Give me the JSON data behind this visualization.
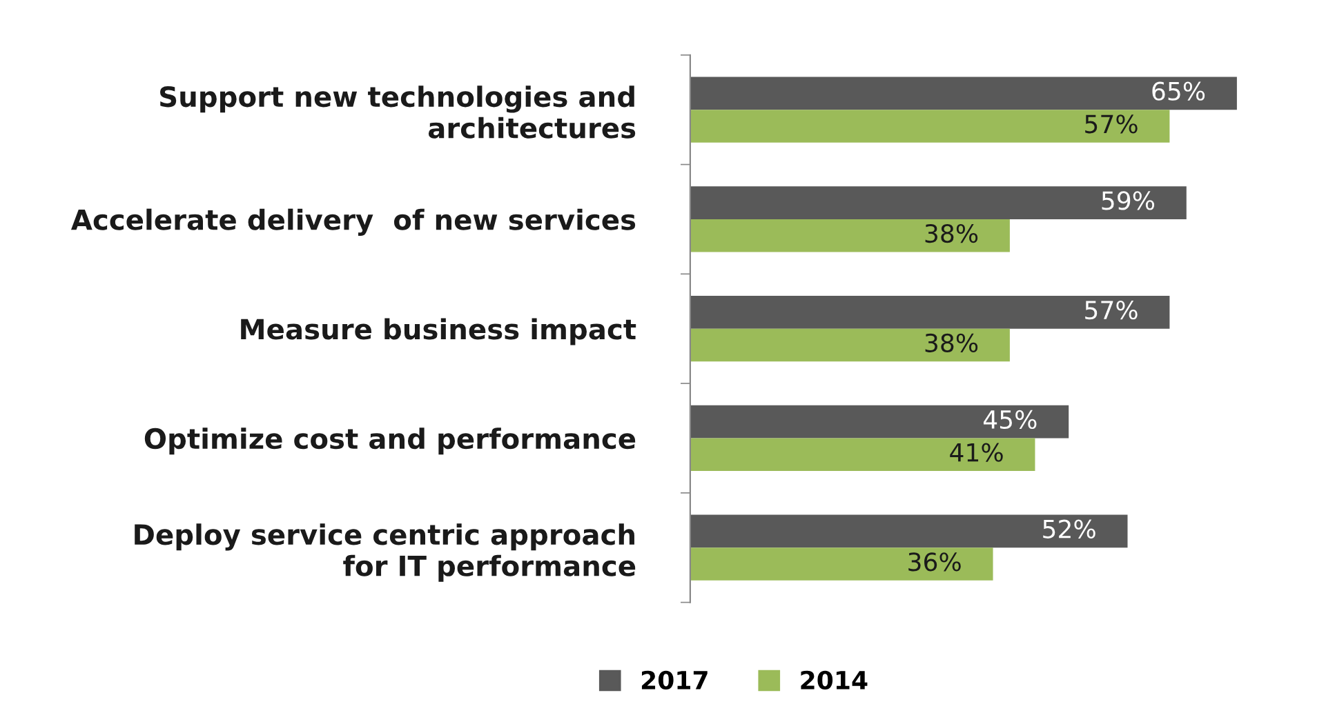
{
  "chart_data": {
    "type": "bar",
    "orientation": "horizontal",
    "categories": [
      "Support new technologies and\narchitectures",
      "Accelerate delivery  of new services",
      "Measure business impact",
      "Optimize cost and performance",
      "Deploy service centric approach\nfor IT performance"
    ],
    "series": [
      {
        "name": "2017",
        "color": "#595959",
        "values": [
          65,
          59,
          57,
          45,
          52
        ],
        "value_labels": [
          "65%",
          "59%",
          "57%",
          "45%",
          "52%"
        ]
      },
      {
        "name": "2014",
        "color": "#9bbb59",
        "values": [
          57,
          38,
          38,
          41,
          36
        ],
        "value_labels": [
          "57%",
          "38%",
          "38%",
          "41%",
          "36%"
        ]
      }
    ],
    "tick_labels": "y",
    "grid": false,
    "legend": "bottom"
  }
}
